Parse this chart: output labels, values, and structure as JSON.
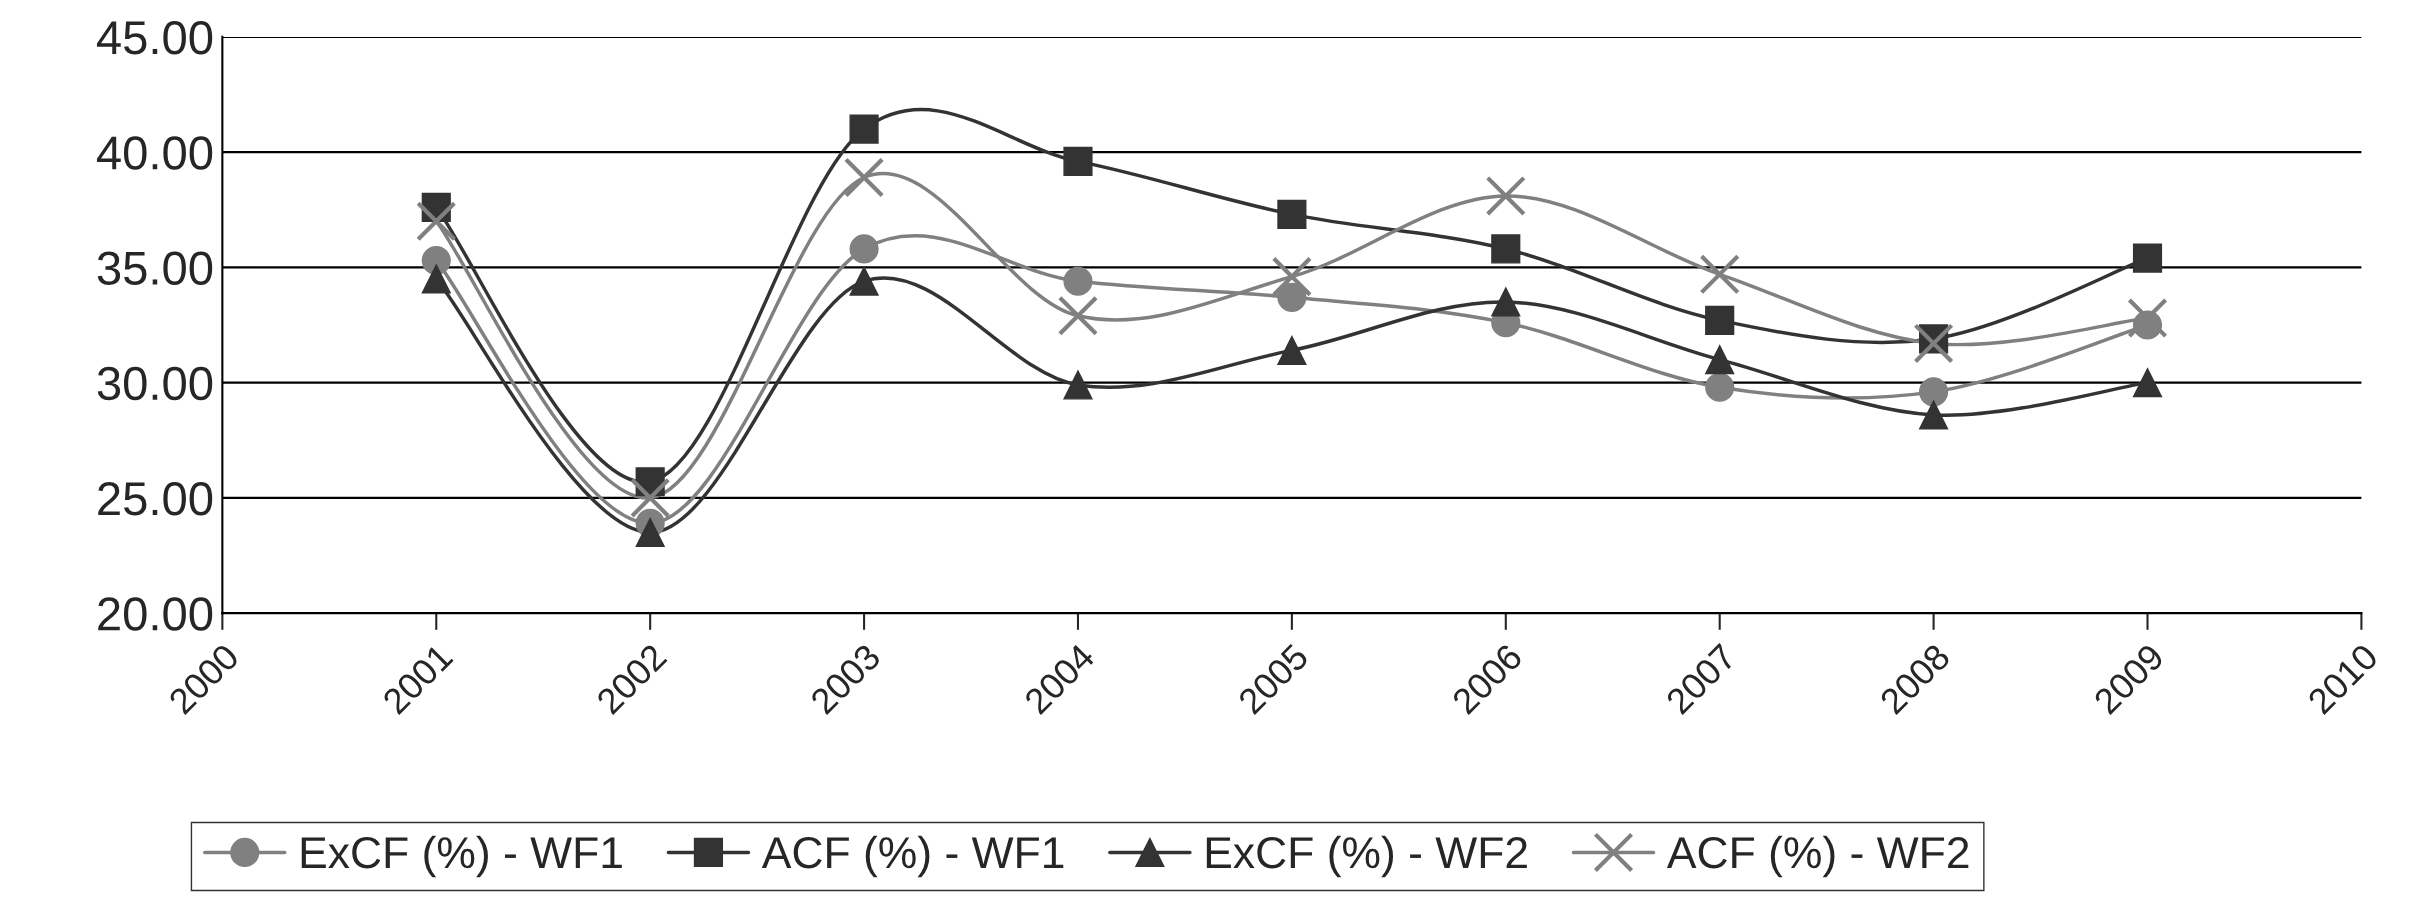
{
  "chart_data": {
    "type": "line",
    "x": [
      2001,
      2002,
      2003,
      2004,
      2005,
      2006,
      2007,
      2008,
      2009
    ],
    "series": [
      {
        "name": "ExCF (%) - WF1",
        "color": "#808080",
        "marker": "circle",
        "values": [
          35.3,
          23.9,
          35.8,
          34.4,
          33.7,
          32.6,
          29.8,
          29.6,
          32.5
        ]
      },
      {
        "name": "ACF (%) - WF1",
        "color": "#333333",
        "marker": "square",
        "values": [
          37.6,
          25.7,
          41.0,
          39.6,
          37.3,
          35.8,
          32.7,
          31.9,
          35.4
        ]
      },
      {
        "name": "ExCF (%) - WF2",
        "color": "#333333",
        "marker": "triangle",
        "values": [
          34.5,
          23.5,
          34.4,
          29.9,
          31.4,
          33.5,
          31.0,
          28.6,
          30.0
        ]
      },
      {
        "name": "ACF (%) - WF2",
        "color": "#808080",
        "marker": "cross",
        "values": [
          37.0,
          25.0,
          38.9,
          32.9,
          34.6,
          38.1,
          34.7,
          31.7,
          32.8
        ]
      }
    ],
    "xlim": [
      2000,
      2010
    ],
    "xticks": [
      2000,
      2001,
      2002,
      2003,
      2004,
      2005,
      2006,
      2007,
      2008,
      2009,
      2010
    ],
    "ylim": [
      20,
      45
    ],
    "yticks": [
      {
        "value": 20,
        "label": "20.00"
      },
      {
        "value": 25,
        "label": "25.00"
      },
      {
        "value": 30,
        "label": "30.00"
      },
      {
        "value": 35,
        "label": "35.00"
      },
      {
        "value": 40,
        "label": "40.00"
      },
      {
        "value": 45,
        "label": "45.00"
      }
    ],
    "grid": "y",
    "legend": "bottom",
    "line_style": "solid"
  }
}
